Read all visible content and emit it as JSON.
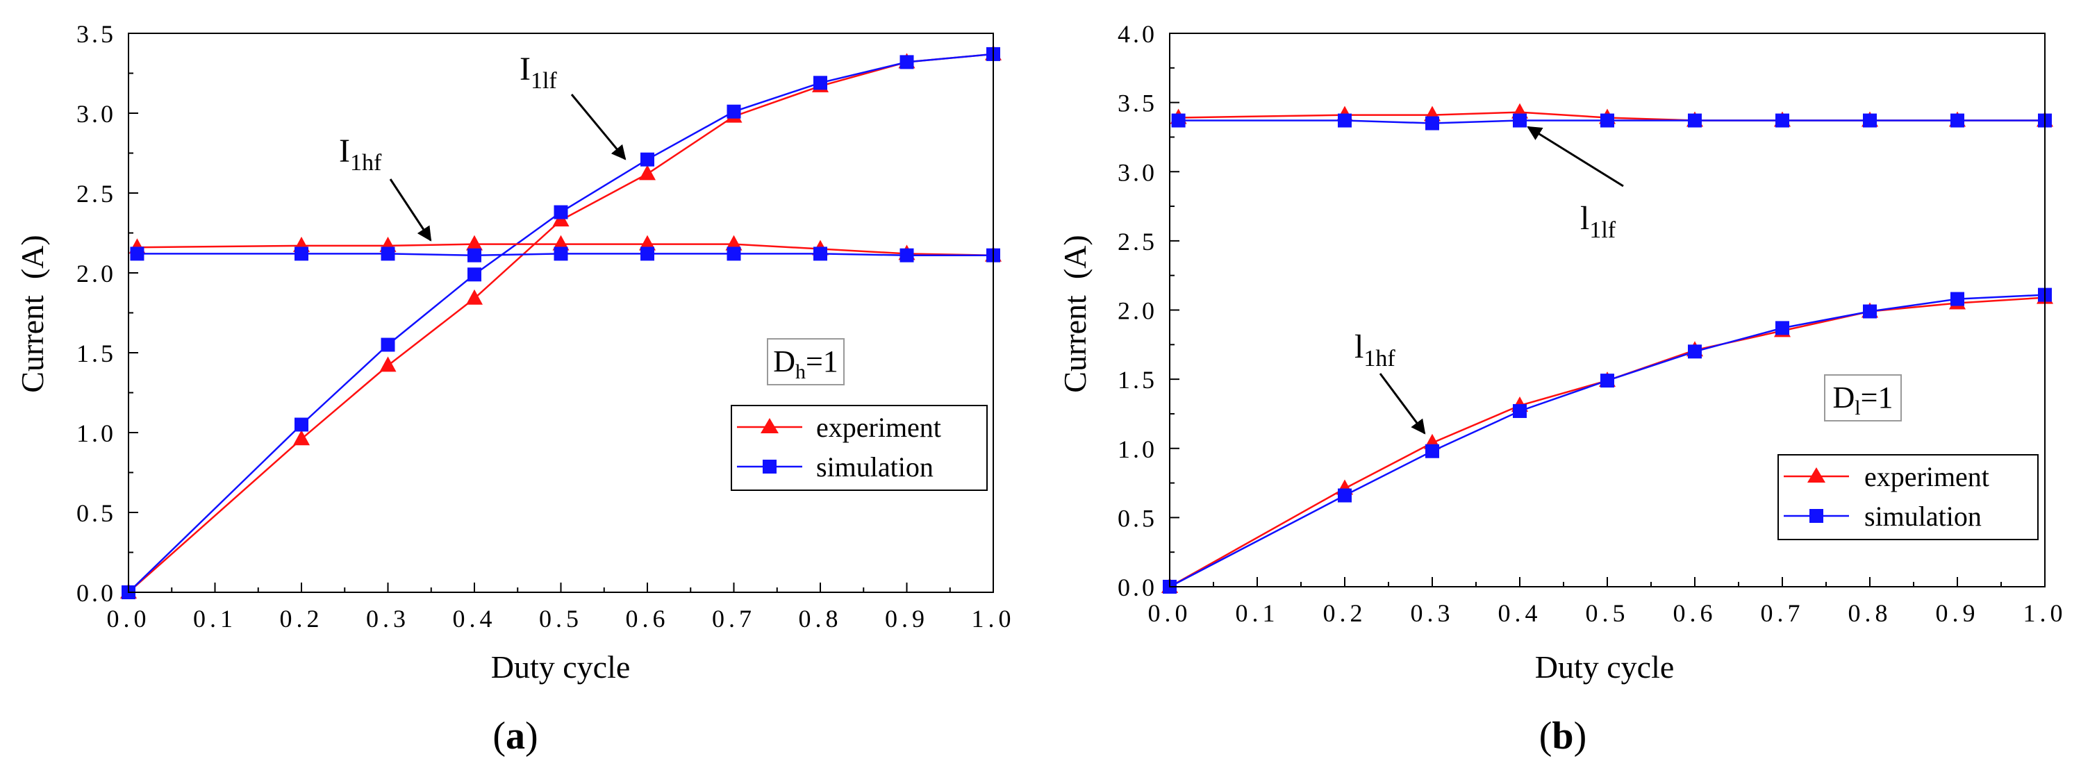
{
  "chart_data": [
    {
      "type": "line",
      "panel_label": "a",
      "xlabel": "Duty cycle",
      "ylabel": "Current  (A)",
      "xlim": [
        0.0,
        1.0
      ],
      "ylim": [
        0.0,
        3.5
      ],
      "x_ticks": [
        "0.0",
        "0.1",
        "0.2",
        "0.3",
        "0.4",
        "0.5",
        "0.6",
        "0.7",
        "0.8",
        "0.9",
        "1.0"
      ],
      "y_ticks": [
        "0.0",
        "0.5",
        "1.0",
        "1.5",
        "2.0",
        "2.5",
        "3.0",
        "3.5"
      ],
      "legend": [
        "experiment",
        "simulation"
      ],
      "condition": {
        "main": "D",
        "sub": "h",
        "rest": "=1"
      },
      "series": [
        {
          "name": "experiment",
          "label": "I_1lf",
          "color": "#ff1010",
          "marker": "triangle",
          "x": [
            0.0,
            0.2,
            0.3,
            0.4,
            0.5,
            0.6,
            0.7,
            0.8,
            0.9,
            1.0
          ],
          "y": [
            0.0,
            0.96,
            1.42,
            1.84,
            2.33,
            2.62,
            2.98,
            3.17,
            3.32,
            3.37
          ]
        },
        {
          "name": "simulation",
          "label": "I_1lf",
          "color": "#1010ff",
          "marker": "square",
          "x": [
            0.0,
            0.2,
            0.3,
            0.4,
            0.5,
            0.6,
            0.7,
            0.8,
            0.9,
            1.0
          ],
          "y": [
            0.0,
            1.05,
            1.55,
            1.99,
            2.38,
            2.71,
            3.01,
            3.19,
            3.32,
            3.37
          ]
        },
        {
          "name": "experiment",
          "label": "I_1hf",
          "color": "#ff1010",
          "marker": "triangle",
          "x": [
            0.01,
            0.2,
            0.3,
            0.4,
            0.5,
            0.6,
            0.7,
            0.8,
            0.9,
            1.0
          ],
          "y": [
            2.16,
            2.17,
            2.17,
            2.18,
            2.18,
            2.18,
            2.18,
            2.15,
            2.12,
            2.11
          ]
        },
        {
          "name": "simulation",
          "label": "I_1hf",
          "color": "#1010ff",
          "marker": "square",
          "x": [
            0.01,
            0.2,
            0.3,
            0.4,
            0.5,
            0.6,
            0.7,
            0.8,
            0.9,
            1.0
          ],
          "y": [
            2.12,
            2.12,
            2.12,
            2.11,
            2.12,
            2.12,
            2.12,
            2.12,
            2.11,
            2.11
          ]
        }
      ],
      "annotations": [
        {
          "main": "I",
          "sub": "1lf",
          "points_to": [
            0.58,
            2.7
          ]
        },
        {
          "main": "I",
          "sub": "1hf",
          "points_to": [
            0.35,
            2.18
          ]
        }
      ]
    },
    {
      "type": "line",
      "panel_label": "b",
      "xlabel": "Duty cycle",
      "ylabel": "Current  (A)",
      "xlim": [
        0.0,
        1.0
      ],
      "ylim": [
        0.0,
        4.0
      ],
      "x_ticks": [
        "0.0",
        "0.1",
        "0.2",
        "0.3",
        "0.4",
        "0.5",
        "0.6",
        "0.7",
        "0.8",
        "0.9",
        "1.0"
      ],
      "y_ticks": [
        "0.0",
        "0.5",
        "1.0",
        "1.5",
        "2.0",
        "2.5",
        "3.0",
        "3.5",
        "4.0"
      ],
      "legend": [
        "experiment",
        "simulation"
      ],
      "condition": {
        "main": "D",
        "sub": "l",
        "rest": "=1"
      },
      "series": [
        {
          "name": "experiment",
          "label": "l_1lf",
          "color": "#ff1010",
          "marker": "triangle",
          "x": [
            0.01,
            0.2,
            0.3,
            0.4,
            0.5,
            0.6,
            0.7,
            0.8,
            0.9,
            1.0
          ],
          "y": [
            3.39,
            3.41,
            3.41,
            3.43,
            3.39,
            3.37,
            3.37,
            3.37,
            3.37,
            3.37
          ]
        },
        {
          "name": "simulation",
          "label": "l_1lf",
          "color": "#1010ff",
          "marker": "square",
          "x": [
            0.01,
            0.2,
            0.3,
            0.4,
            0.5,
            0.6,
            0.7,
            0.8,
            0.9,
            1.0
          ],
          "y": [
            3.37,
            3.37,
            3.35,
            3.37,
            3.37,
            3.37,
            3.37,
            3.37,
            3.37,
            3.37
          ]
        },
        {
          "name": "experiment",
          "label": "l_1hf",
          "color": "#ff1010",
          "marker": "triangle",
          "x": [
            0.0,
            0.2,
            0.3,
            0.4,
            0.5,
            0.6,
            0.7,
            0.8,
            0.9,
            1.0
          ],
          "y": [
            0.0,
            0.71,
            1.04,
            1.31,
            1.49,
            1.71,
            1.85,
            1.99,
            2.05,
            2.09
          ]
        },
        {
          "name": "simulation",
          "label": "l_1hf",
          "color": "#1010ff",
          "marker": "square",
          "x": [
            0.0,
            0.2,
            0.3,
            0.4,
            0.5,
            0.6,
            0.7,
            0.8,
            0.9,
            1.0
          ],
          "y": [
            0.0,
            0.66,
            0.98,
            1.27,
            1.49,
            1.7,
            1.87,
            1.99,
            2.08,
            2.11
          ]
        }
      ],
      "annotations": [
        {
          "main": "l",
          "sub": "1lf",
          "points_to": [
            0.41,
            3.31
          ]
        },
        {
          "main": "l",
          "sub": "1hf",
          "points_to": [
            0.29,
            1.09
          ]
        }
      ]
    }
  ]
}
